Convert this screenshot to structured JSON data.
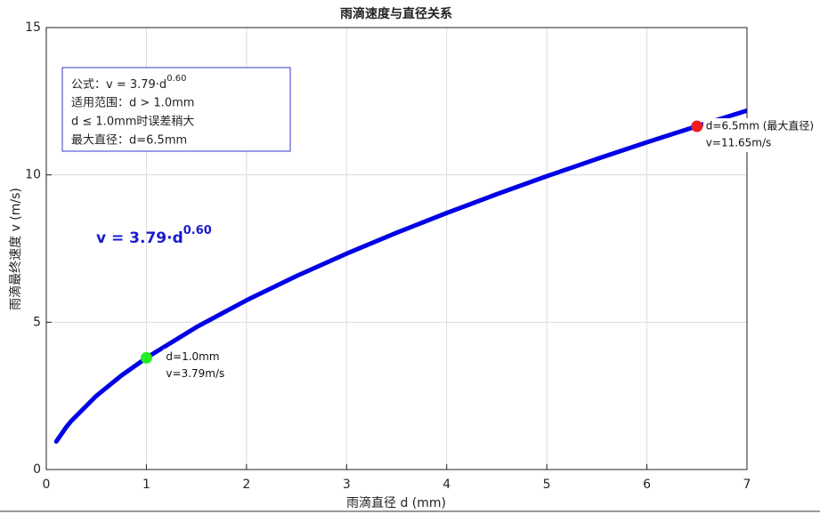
{
  "chart_data": {
    "type": "line",
    "title": "雨滴速度与直径关系",
    "xlabel": "雨滴直径 d (mm)",
    "ylabel": "雨滴最终速度 v (m/s)",
    "x": [
      0.1,
      0.2,
      0.25,
      0.5,
      0.75,
      1,
      1.5,
      2,
      2.5,
      3,
      3.5,
      4,
      4.5,
      5,
      5.5,
      6,
      6.5,
      7
    ],
    "series": [
      {
        "color": "#0000e6",
        "values": [
          0.952,
          1.443,
          1.65,
          2.501,
          3.189,
          3.79,
          4.834,
          5.745,
          6.568,
          7.327,
          8.037,
          8.707,
          9.345,
          9.955,
          10.54,
          11.105,
          11.652,
          12.181
        ]
      }
    ],
    "points": [
      {
        "x": 1.0,
        "y": 3.79,
        "color": "#22ee22",
        "labels": [
          "d=1.0mm",
          "v=3.79m/s"
        ]
      },
      {
        "x": 6.5,
        "y": 11.65,
        "color": "#ee1c1c",
        "labels": [
          "d=6.5mm (最大直径)",
          "v=11.65m/s"
        ]
      }
    ],
    "info_box": [
      "公式：v = 3.79·d",
      "0.60",
      "适用范围：d > 1.0mm",
      "d ≤ 1.0mm时误差稍大",
      "最大直径：d=6.5mm"
    ],
    "formula": [
      "v = 3.79·d",
      "0.60"
    ],
    "xlim": [
      0,
      7
    ],
    "ylim": [
      0,
      15
    ],
    "xticks": [
      0,
      1,
      2,
      3,
      4,
      5,
      6,
      7
    ],
    "yticks": [
      0,
      5,
      10,
      15
    ],
    "grid": true
  }
}
